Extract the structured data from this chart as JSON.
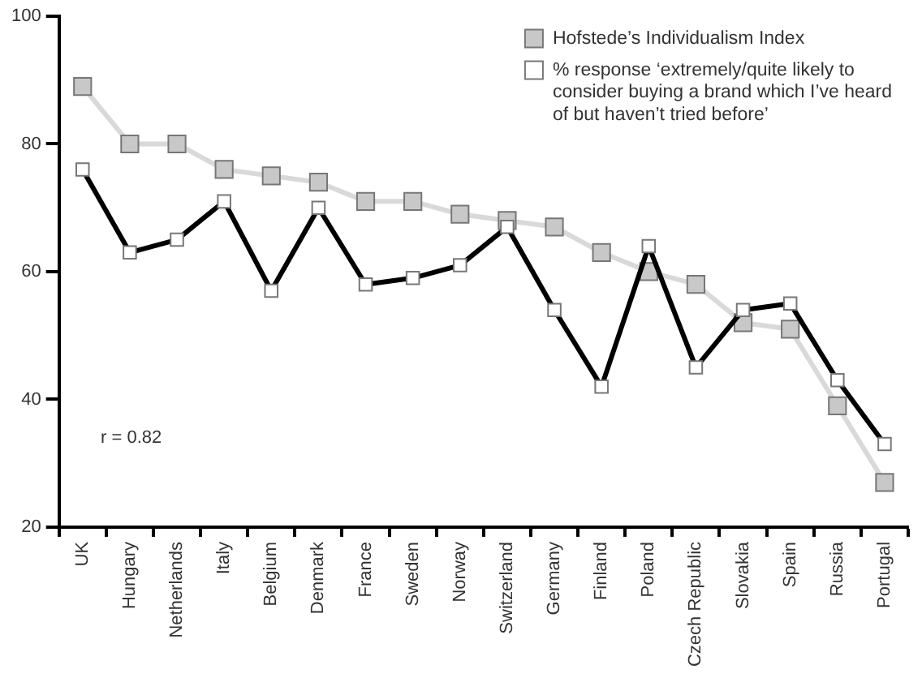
{
  "chart_data": {
    "type": "line",
    "categories": [
      "UK",
      "Hungary",
      "Netherlands",
      "Italy",
      "Belgium",
      "Denmark",
      "France",
      "Sweden",
      "Norway",
      "Switzerland",
      "Germany",
      "Finland",
      "Poland",
      "Czech Republic",
      "Slovakia",
      "Spain",
      "Russia",
      "Portugal"
    ],
    "series": [
      {
        "name": "Hofstede’s Individualism Index",
        "color": "#d9d9d9",
        "values": [
          89,
          80,
          80,
          76,
          75,
          74,
          71,
          71,
          69,
          68,
          67,
          63,
          60,
          58,
          52,
          51,
          39,
          27
        ]
      },
      {
        "name": "% response ‘extremely/quite likely to consider buying a brand which I’ve heard of but haven’t tried before’",
        "color": "#000000",
        "values": [
          76,
          63,
          65,
          71,
          57,
          70,
          58,
          59,
          61,
          67,
          54,
          42,
          64,
          45,
          54,
          55,
          43,
          33
        ]
      }
    ],
    "ylim": [
      20,
      100
    ],
    "yticks": [
      20,
      40,
      60,
      80,
      100
    ],
    "grid": false,
    "legend": "top right",
    "marker": "square",
    "line_style": "solid",
    "annotations": [
      "r = 0.82"
    ]
  }
}
